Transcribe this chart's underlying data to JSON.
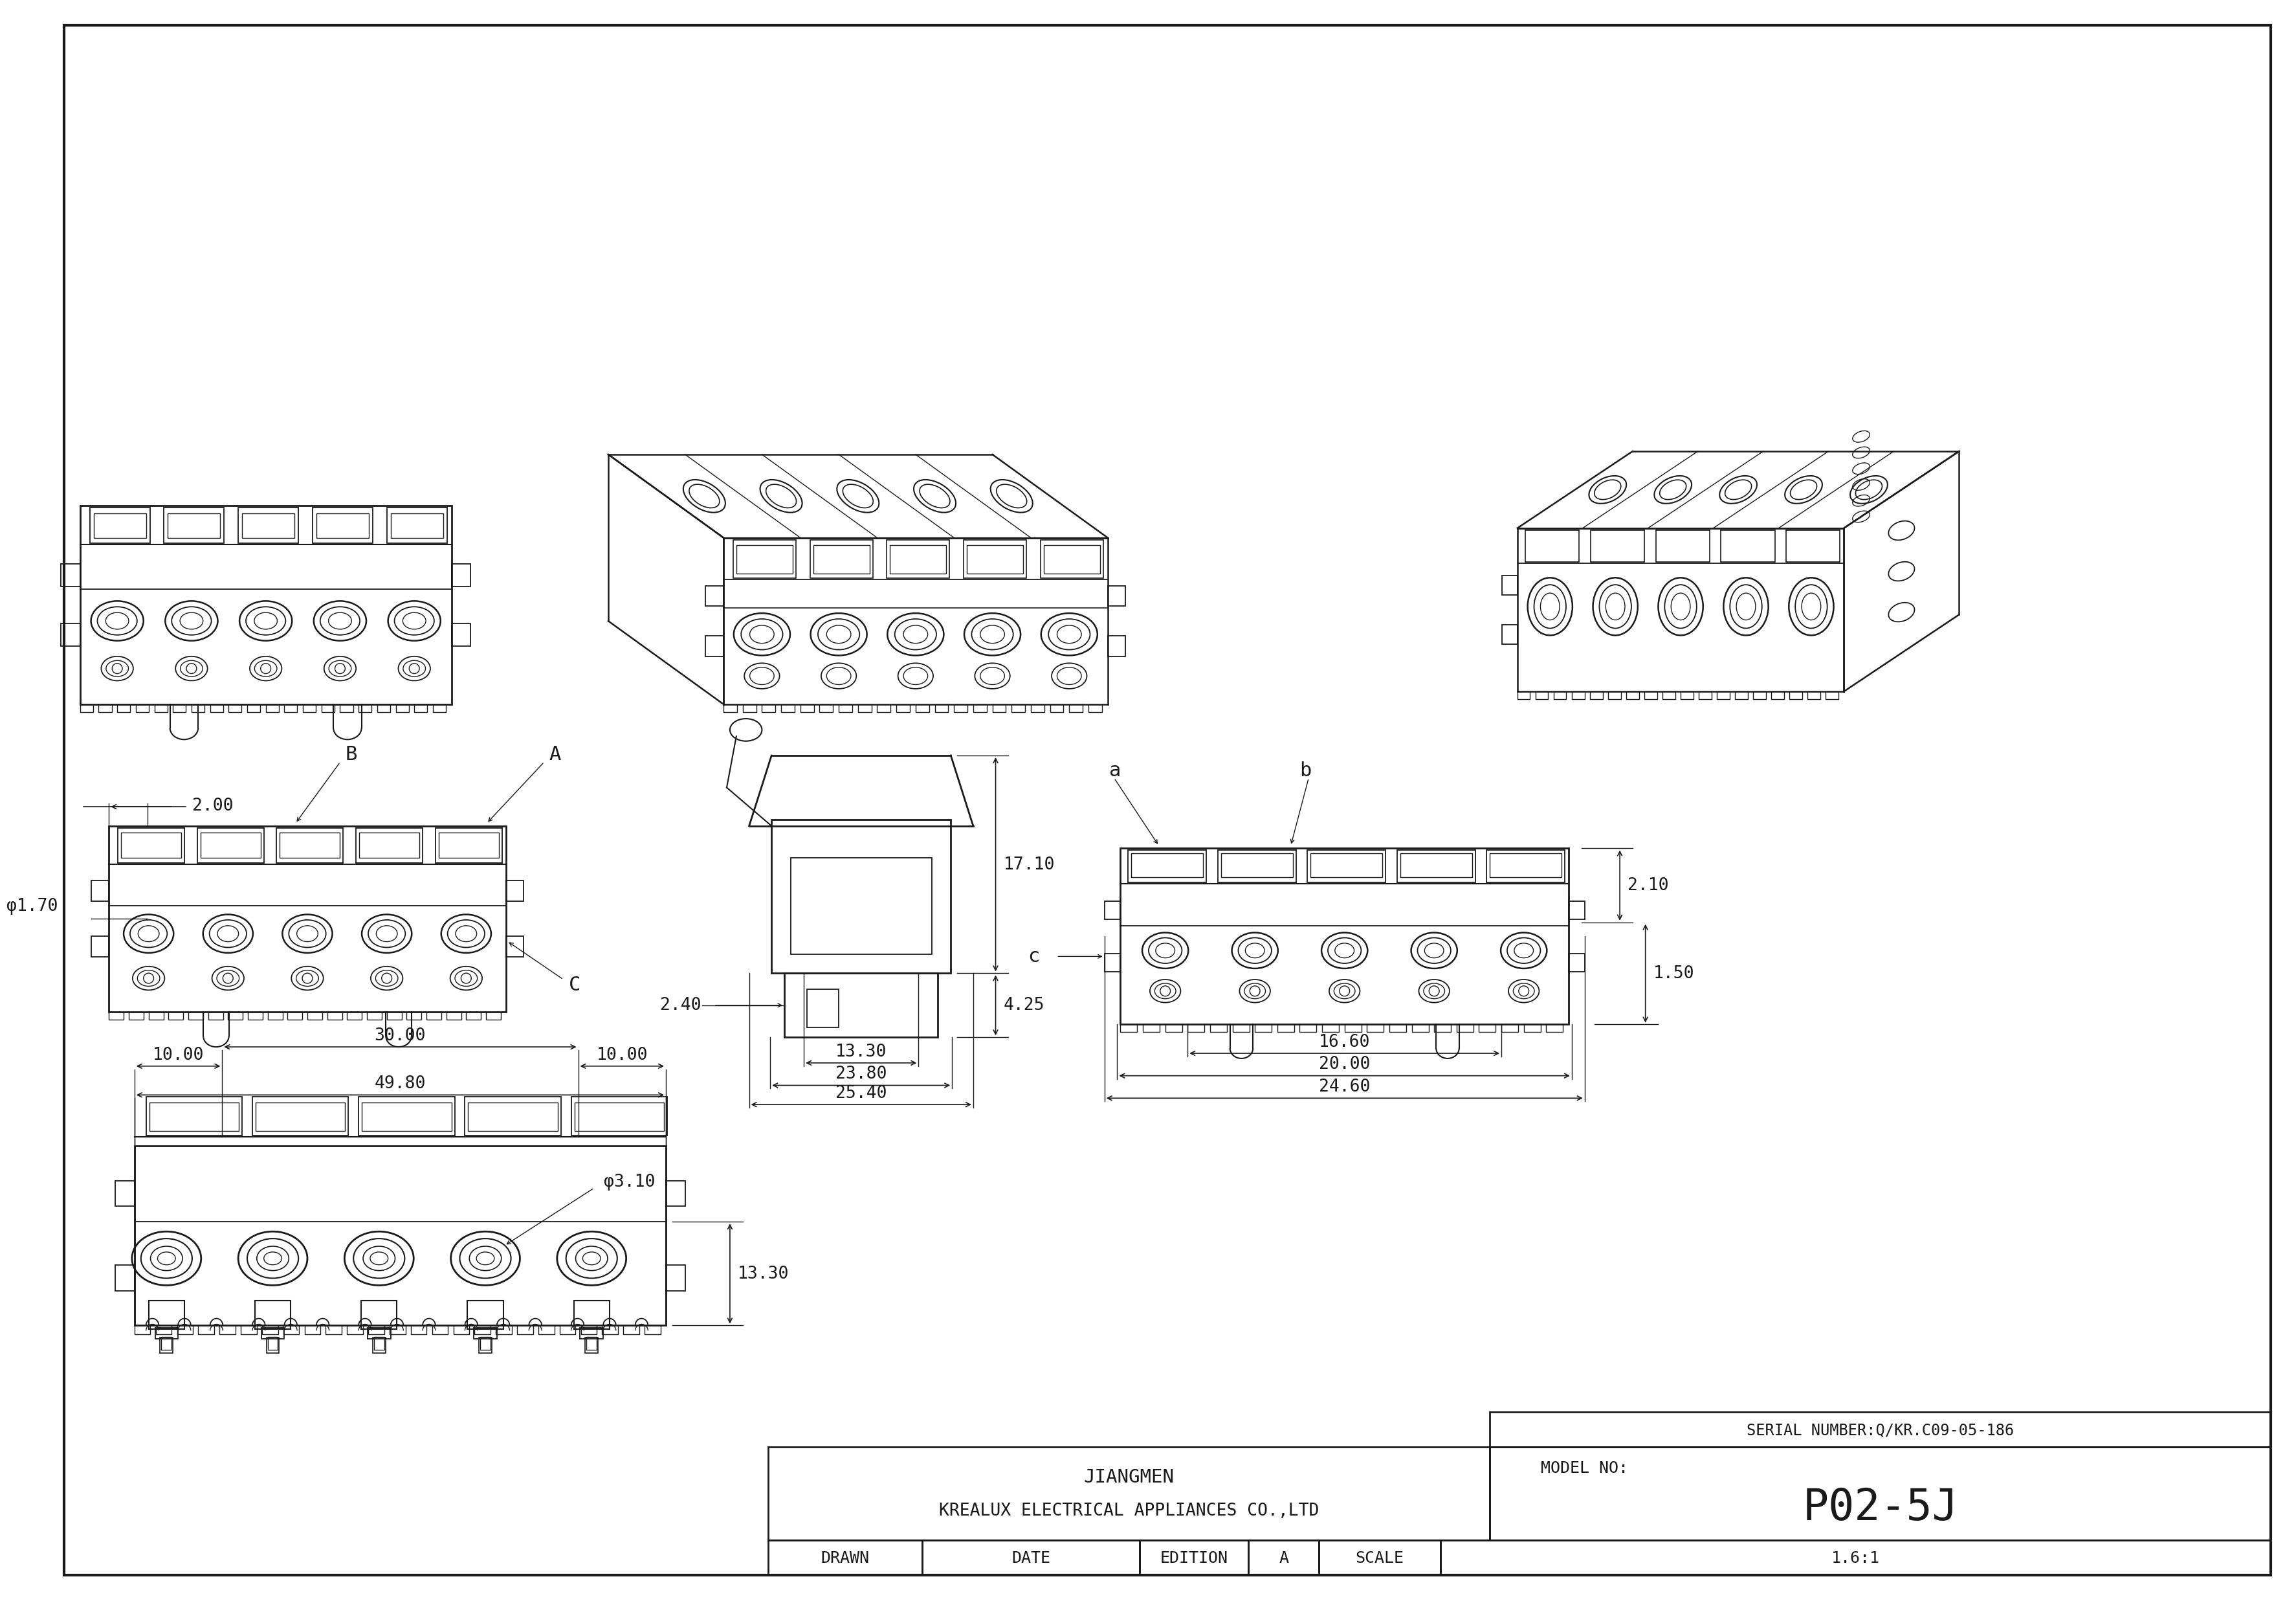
{
  "bg_color": "#ffffff",
  "line_color": "#1a1a1a",
  "title_block": {
    "company_line1": "JIANGMEN",
    "company_line2": "KREALUX ELECTRICAL APPLIANCES CO.,LTD",
    "model_no_label": "MODEL NO:",
    "model_no": "P02-5J",
    "serial_number": "SERIAL NUMBER:Q/KR.C09-05-186",
    "drawn_label": "DRAWN",
    "date_label": "DATE",
    "edition_label": "EDITION",
    "edition_value": "A",
    "scale_label": "SCALE",
    "scale_value": "1.6:1"
  },
  "dims": {
    "d200": "2.00",
    "d170": "φ1.70",
    "d310": "φ3.10",
    "d1330a": "13.30",
    "d1330b": "13.30",
    "d1000a": "10.00",
    "d1000b": "10.00",
    "d3000": "30.00",
    "d4980": "49.80",
    "d1710": "17.10",
    "d425": "4.25",
    "d240": "2.40",
    "d1330c": "13.30",
    "d2380": "23.80",
    "d2540": "25.40",
    "d1660": "16.60",
    "d2000": "20.00",
    "d2460": "24.60",
    "d210": "2.10",
    "d150": "1.50",
    "lA": "A",
    "lB": "B",
    "lC": "C",
    "la": "a",
    "lb": "b",
    "lc": "c"
  }
}
